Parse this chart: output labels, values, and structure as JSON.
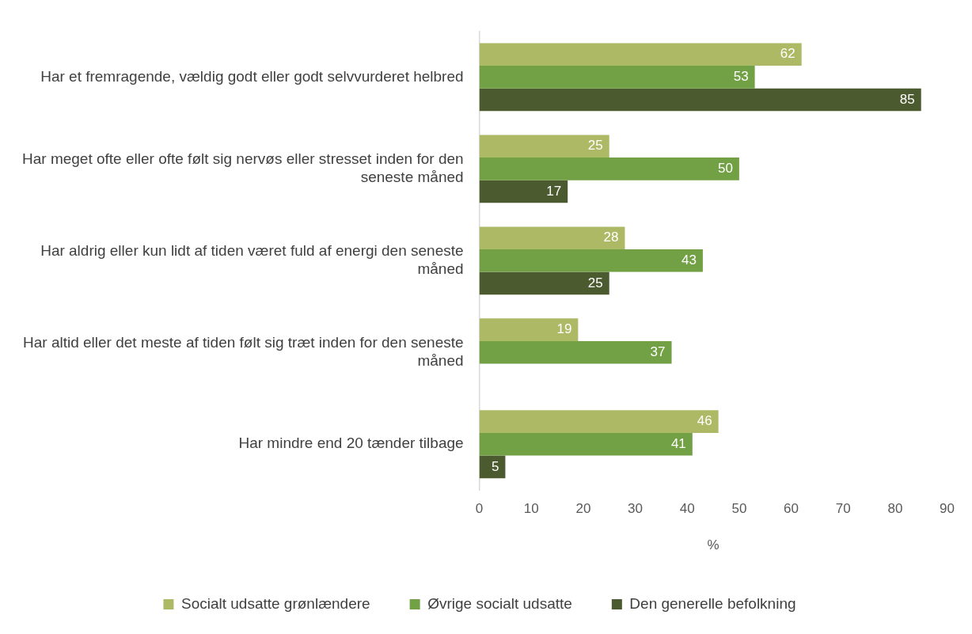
{
  "chart_data": {
    "type": "bar",
    "orientation": "horizontal",
    "xlabel": "%",
    "categories": [
      "Har et fremragende, vældig godt eller godt selvvurderet helbred",
      "Har meget ofte eller ofte følt sig nervøs eller stresset inden for den seneste måned",
      "Har aldrig eller kun lidt af tiden været fuld af energi den seneste måned",
      "Har altid eller det meste af tiden følt sig træt inden for den seneste måned",
      "Har mindre end 20 tænder tilbage"
    ],
    "series": [
      {
        "name": "Socialt udsatte grønlændere",
        "color": "#adb964",
        "values": [
          62,
          25,
          28,
          19,
          46
        ]
      },
      {
        "name": "Øvrige socialt udsatte",
        "color": "#72a044",
        "values": [
          53,
          50,
          43,
          37,
          41
        ]
      },
      {
        "name": "Den generelle befolkning",
        "color": "#4c5a2f",
        "values": [
          85,
          17,
          25,
          null,
          5
        ]
      }
    ],
    "xlim": [
      0,
      90
    ],
    "xticks": [
      0,
      10,
      20,
      30,
      40,
      50,
      60,
      70,
      80,
      90
    ],
    "grid": false,
    "legend": "bottom",
    "data_labels": true
  }
}
